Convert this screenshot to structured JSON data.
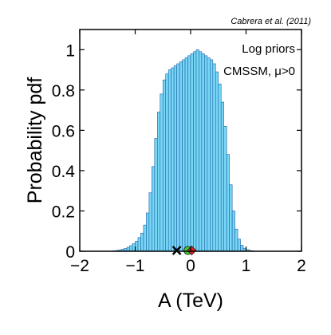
{
  "chart_data": {
    "type": "bar",
    "citation": "Cabrera et al. (2011)",
    "xlabel": "A (TeV)",
    "ylabel": "Probability pdf",
    "annotations": [
      "Log priors",
      "CMSSM, μ>0"
    ],
    "xlim": [
      -2,
      2
    ],
    "ylim": [
      0,
      1.1
    ],
    "x_ticks": [
      -2,
      -1,
      0,
      1,
      2
    ],
    "x_tick_labels": [
      "−2",
      "−1",
      "0",
      "1",
      "2"
    ],
    "y_ticks": [
      0,
      0.2,
      0.4,
      0.6,
      0.8,
      1
    ],
    "y_tick_labels": [
      "0",
      "0.2",
      "0.4",
      "0.6",
      "0.8",
      "1"
    ],
    "grid": false,
    "bin_width": 0.05,
    "bin_start": -1.4,
    "values": [
      0.002,
      0.004,
      0.006,
      0.01,
      0.014,
      0.02,
      0.028,
      0.038,
      0.05,
      0.068,
      0.09,
      0.13,
      0.19,
      0.29,
      0.42,
      0.56,
      0.69,
      0.78,
      0.85,
      0.88,
      0.9,
      0.91,
      0.92,
      0.93,
      0.94,
      0.95,
      0.96,
      0.97,
      0.98,
      0.99,
      1.0,
      0.99,
      0.98,
      0.97,
      0.96,
      0.95,
      0.93,
      0.89,
      0.83,
      0.74,
      0.62,
      0.48,
      0.33,
      0.2,
      0.11,
      0.06,
      0.03,
      0.015,
      0.008,
      0.004,
      0.002
    ],
    "bar_fill": "#76d7f5",
    "bar_edge": "#1f5fa6",
    "markers": [
      {
        "kind": "cross",
        "x": -0.25,
        "color": "#000000"
      },
      {
        "kind": "circle",
        "x": -0.05,
        "color": "#45c832"
      },
      {
        "kind": "diamond",
        "x": 0.02,
        "color": "#e02020"
      }
    ]
  }
}
